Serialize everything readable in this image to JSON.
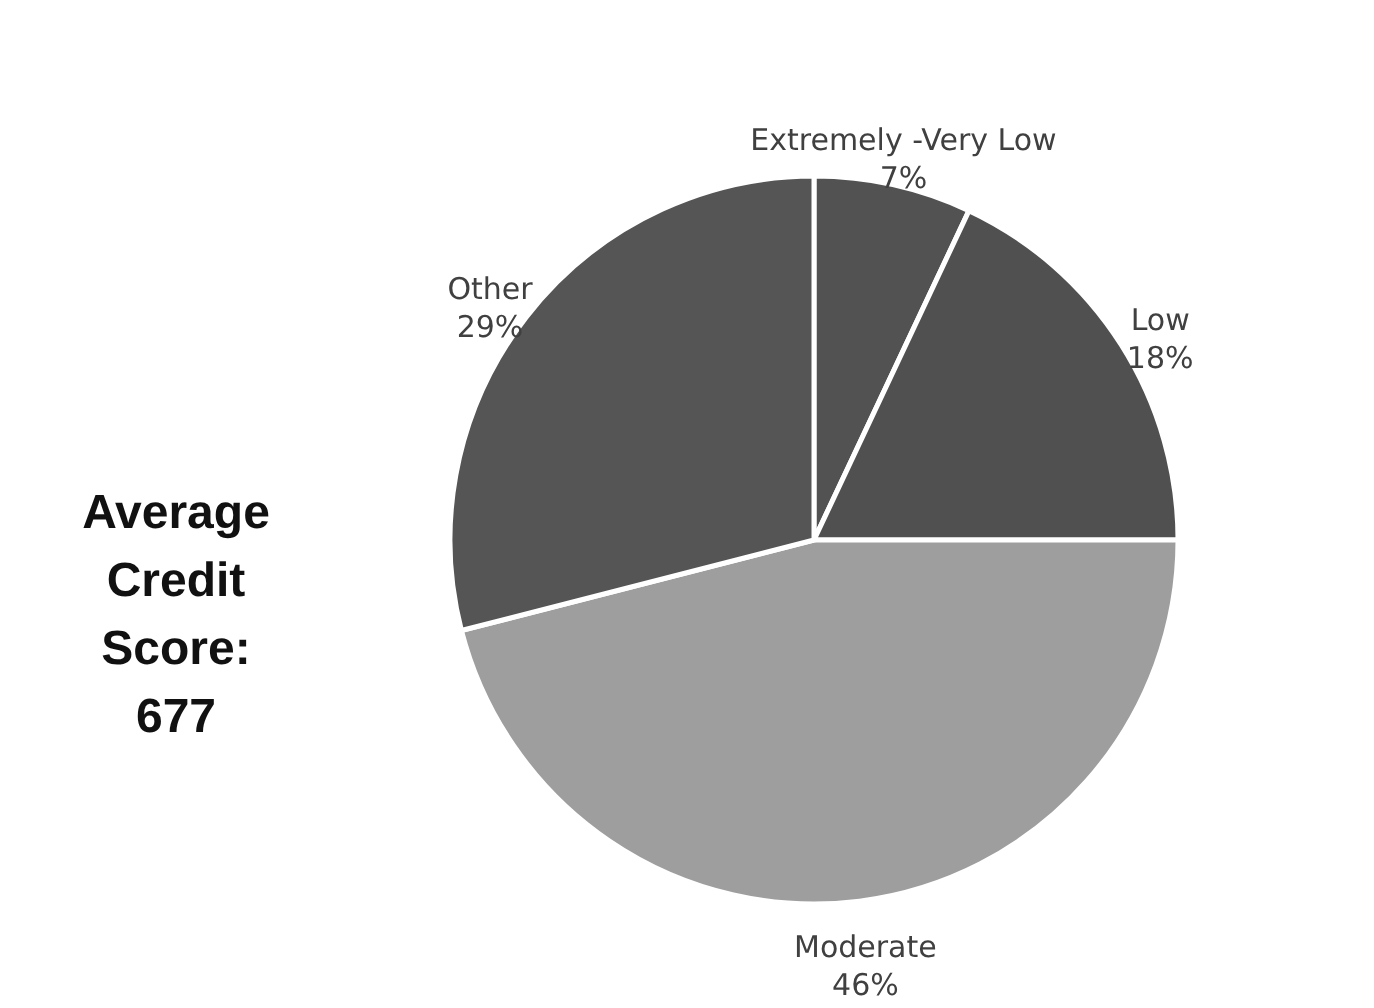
{
  "chart_data": {
    "type": "pie",
    "categories": [
      "Extremely -Very Low",
      "Low",
      "Moderate",
      "Other"
    ],
    "values": [
      7,
      18,
      46,
      29
    ],
    "value_labels": [
      "7%",
      "18%",
      "46%",
      "29%"
    ],
    "colors": [
      "#525252",
      "#505050",
      "#9e9e9e",
      "#555555"
    ],
    "annotations": [
      "Average Credit Score: 677"
    ]
  }
}
